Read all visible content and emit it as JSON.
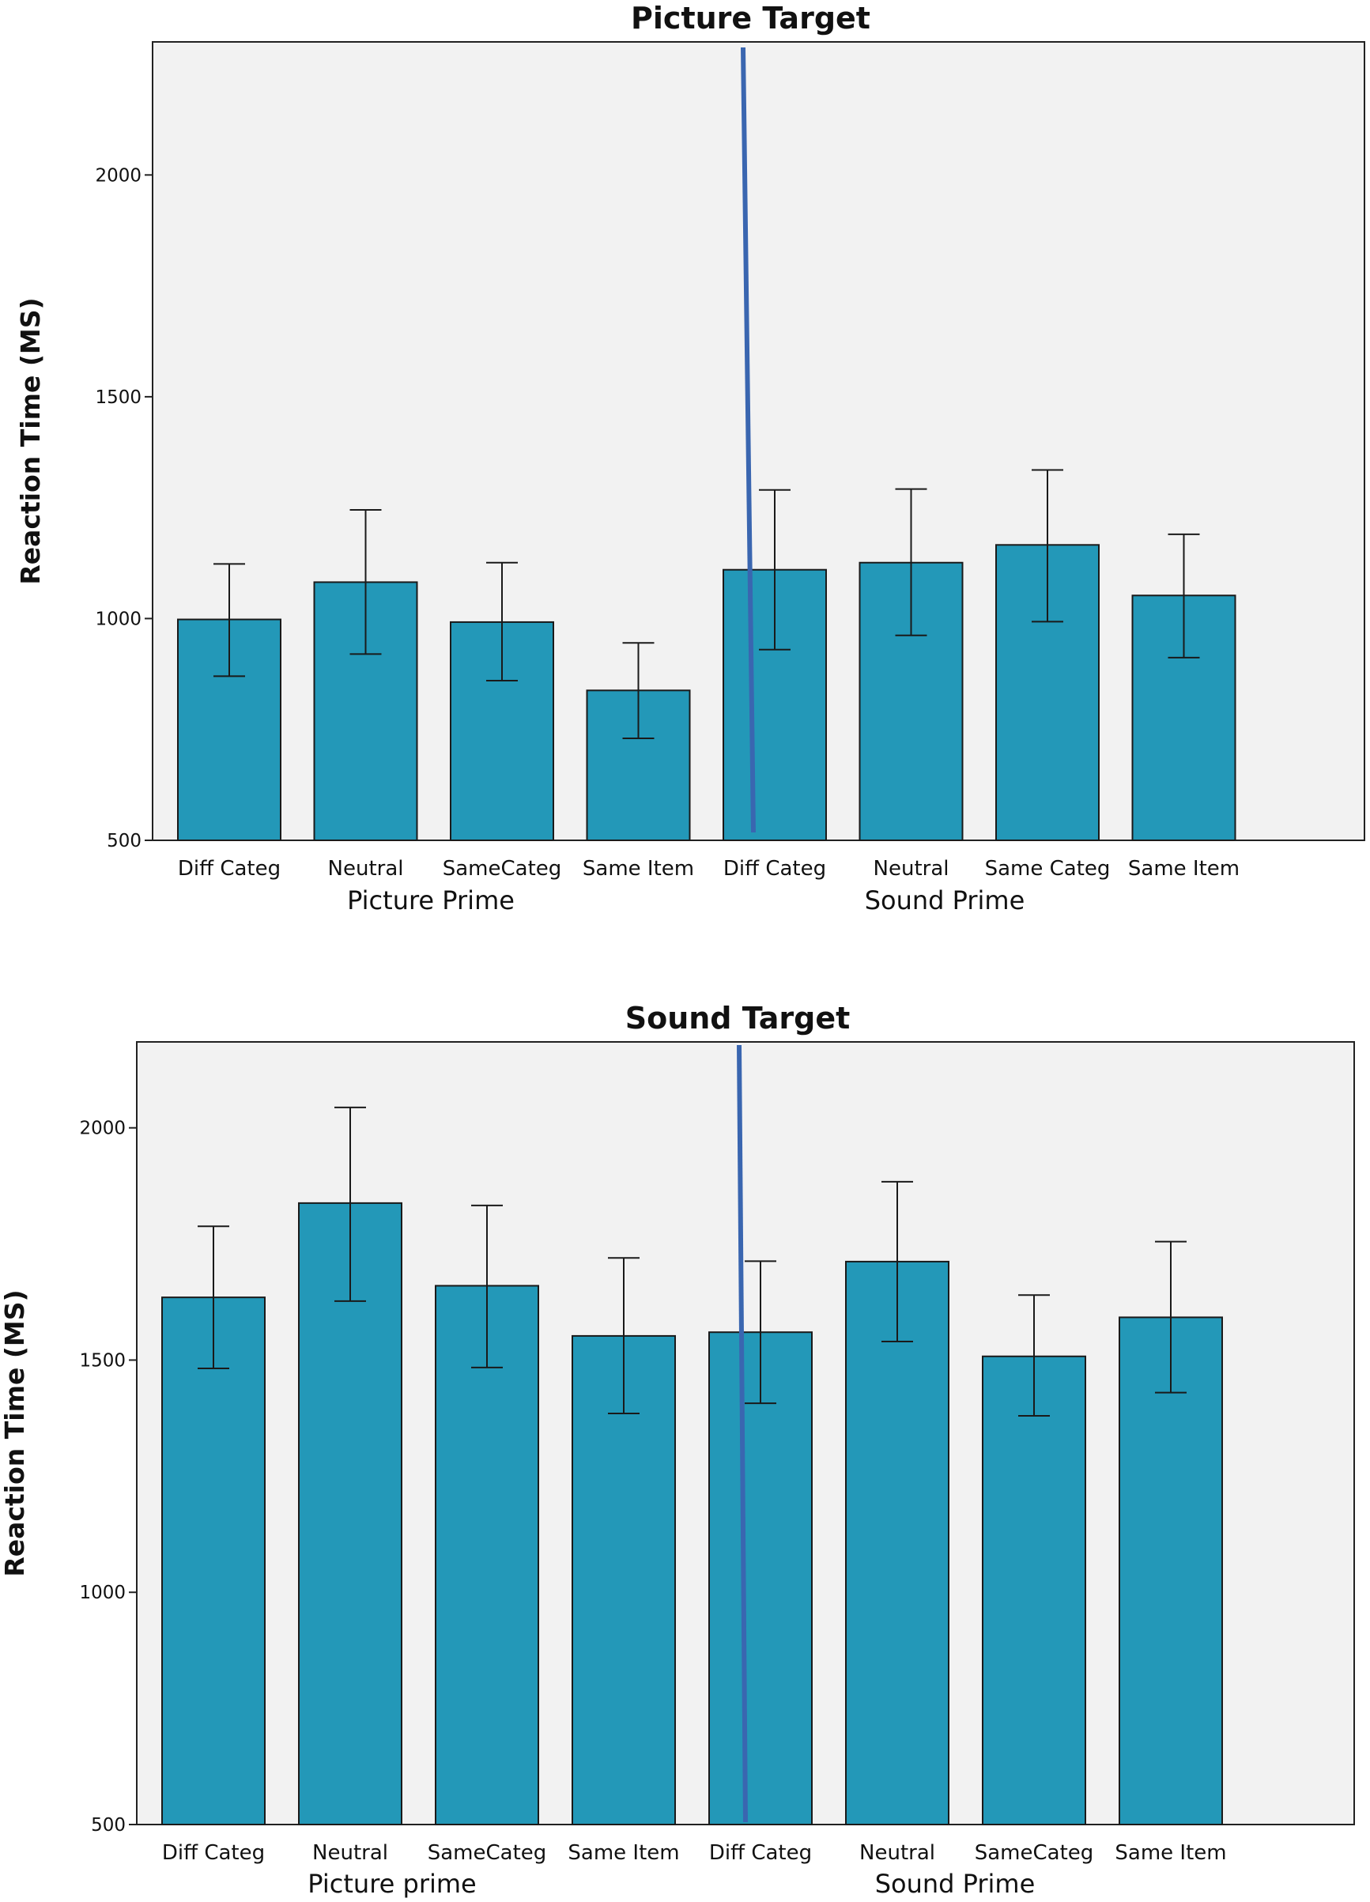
{
  "chart_data": [
    {
      "type": "bar",
      "title": "Picture Target",
      "ylabel": "Reaction Time (MS)",
      "xlabel": "",
      "ylim": [
        500,
        2300
      ],
      "yticks": [
        500,
        1000,
        1500,
        2000
      ],
      "ytick_labels": [
        "500",
        "1000",
        "1500",
        "2000"
      ],
      "grid": false,
      "groups": [
        {
          "label": "Picture Prime",
          "categories": [
            "Diff Categ",
            "Neutral",
            "SameCateg",
            "Same Item"
          ]
        },
        {
          "label": "Sound Prime",
          "categories": [
            "Diff Categ",
            "Neutral",
            "Same Categ",
            "Same Item"
          ]
        }
      ],
      "categories": [
        "Diff Categ",
        "Neutral",
        "SameCateg",
        "Same Item",
        "Diff Categ",
        "Neutral",
        "Same Categ",
        "Same Item"
      ],
      "values": [
        998,
        1082,
        992,
        838,
        1110,
        1126,
        1166,
        1052
      ],
      "error_low": [
        870,
        920,
        860,
        730,
        930,
        962,
        993,
        912
      ],
      "error_high": [
        1123,
        1245,
        1126,
        945,
        1290,
        1292,
        1335,
        1190
      ],
      "colors": {
        "bar": "#2398b8",
        "plot_bg": "#f2f2f2",
        "divider": "#3a66b0"
      }
    },
    {
      "type": "bar",
      "title": "Sound Target",
      "ylabel": "Reaction Time (MS)",
      "xlabel": "",
      "ylim": [
        500,
        2185
      ],
      "yticks": [
        500,
        1000,
        1500,
        2000
      ],
      "ytick_labels": [
        "500",
        "1000",
        "1500",
        "2000"
      ],
      "grid": false,
      "groups": [
        {
          "label": "Picture prime",
          "categories": [
            "Diff Categ",
            "Neutral",
            "SameCateg",
            "Same Item"
          ]
        },
        {
          "label": "Sound Prime",
          "categories": [
            "Diff Categ",
            "Neutral",
            "SameCateg",
            "Same Item"
          ]
        }
      ],
      "categories": [
        "Diff Categ",
        "Neutral",
        "SameCateg",
        "Same Item",
        "Diff Categ",
        "Neutral",
        "SameCateg",
        "Same Item"
      ],
      "values": [
        1635,
        1838,
        1660,
        1552,
        1560,
        1712,
        1508,
        1592
      ],
      "error_low": [
        1482,
        1627,
        1484,
        1385,
        1407,
        1540,
        1380,
        1430
      ],
      "error_high": [
        1788,
        2044,
        1833,
        1720,
        1713,
        1884,
        1640,
        1755
      ],
      "colors": {
        "bar": "#2398b8",
        "plot_bg": "#f2f2f2",
        "divider": "#3a66b0"
      }
    }
  ]
}
